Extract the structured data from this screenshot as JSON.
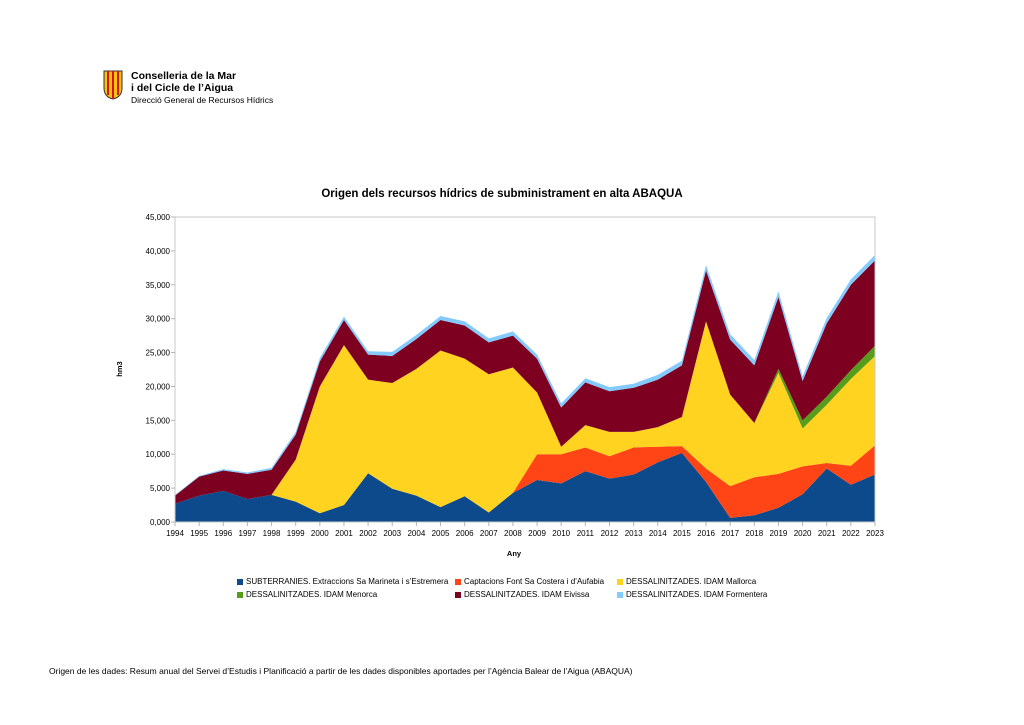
{
  "header": {
    "org_line1": "Conselleria de la Mar",
    "org_line2": "i del Cicle de l’Aigua",
    "org_line3": "Direcció General de Recursos Hídrics"
  },
  "footer": {
    "source": "Origen de les dades: Resum anual del Servei d’Estudis i Planificació a partir de les dades disponibles aportades per l’Agència Balear de l’Aigua (ABAQUA)"
  },
  "chart_data": {
    "type": "area",
    "stacked": true,
    "title": "Origen dels recursos hídrics de subministrament en alta ABAQUA",
    "xlabel": "Any",
    "ylabel": "hm3",
    "ylim": [
      0,
      45
    ],
    "yticks": [
      "0,000",
      "5,000",
      "10,000",
      "15,000",
      "20,000",
      "25,000",
      "30,000",
      "35,000",
      "40,000",
      "45,000"
    ],
    "legend_position": "bottom",
    "grid": false,
    "categories": [
      "1994",
      "1995",
      "1996",
      "1997",
      "1998",
      "1999",
      "2000",
      "2001",
      "2002",
      "2003",
      "2004",
      "2005",
      "2006",
      "2007",
      "2008",
      "2009",
      "2010",
      "2011",
      "2012",
      "2013",
      "2014",
      "2015",
      "2016",
      "2017",
      "2018",
      "2019",
      "2020",
      "2021",
      "2022",
      "2023"
    ],
    "series": [
      {
        "name": "SUBTERRANIES. Extraccions Sa Marineta i s’Estremera",
        "color": "#0d4a8c",
        "values": [
          2.7,
          3.9,
          4.6,
          3.4,
          4.0,
          3.0,
          1.3,
          2.5,
          7.2,
          4.9,
          3.9,
          2.2,
          3.8,
          1.4,
          4.3,
          6.2,
          5.7,
          7.5,
          6.4,
          7.0,
          8.8,
          10.2,
          5.9,
          0.6,
          1.0,
          2.1,
          4.1,
          7.9,
          5.5,
          7.0
        ]
      },
      {
        "name": "Captacions Font Sa Costera i d’Aufabia",
        "color": "#ff4415",
        "values": [
          0,
          0,
          0,
          0,
          0,
          0,
          0,
          0,
          0,
          0,
          0,
          0,
          0,
          0,
          0,
          3.8,
          4.3,
          3.5,
          3.3,
          4.0,
          2.3,
          1.0,
          2.0,
          4.7,
          5.6,
          5.0,
          4.1,
          0.8,
          2.8,
          4.3
        ]
      },
      {
        "name": "DESSALINITZADES. IDAM Mallorca",
        "color": "#ffd320",
        "values": [
          0,
          0,
          0,
          0,
          0,
          6.2,
          18.7,
          23.6,
          13.8,
          15.6,
          18.7,
          23.1,
          20.3,
          20.4,
          18.5,
          9.1,
          1.1,
          3.3,
          3.6,
          2.3,
          2.9,
          4.3,
          21.7,
          13.5,
          8.0,
          14.9,
          5.6,
          8.6,
          12.8,
          13.2
        ]
      },
      {
        "name": "DESSALINITZADES. IDAM Menorca",
        "color": "#579d1c",
        "values": [
          0,
          0,
          0,
          0,
          0,
          0,
          0,
          0,
          0,
          0,
          0,
          0,
          0,
          0,
          0,
          0,
          0,
          0,
          0,
          0,
          0,
          0,
          0,
          0,
          0,
          0.6,
          1.2,
          1.2,
          1.3,
          1.5
        ]
      },
      {
        "name": "DESSALINITZADES. IDAM Eivissa",
        "color": "#7e0021",
        "values": [
          1.2,
          2.8,
          3.0,
          3.7,
          3.7,
          3.7,
          3.7,
          3.7,
          3.7,
          4.0,
          4.4,
          4.5,
          4.9,
          4.7,
          4.7,
          5.0,
          5.8,
          6.3,
          6.0,
          6.5,
          7.0,
          7.6,
          7.5,
          8.1,
          8.5,
          10.6,
          5.8,
          10.8,
          12.6,
          12.6
        ]
      },
      {
        "name": "DESSALINITZADES. IDAM Formentera",
        "color": "#83caff",
        "values": [
          0.1,
          0.1,
          0.2,
          0.2,
          0.3,
          0.4,
          0.5,
          0.5,
          0.5,
          0.6,
          0.6,
          0.6,
          0.6,
          0.6,
          0.6,
          0.6,
          0.6,
          0.6,
          0.6,
          0.6,
          0.7,
          0.7,
          0.8,
          0.8,
          0.8,
          0.8,
          0.7,
          0.8,
          0.8,
          0.8
        ]
      }
    ]
  }
}
